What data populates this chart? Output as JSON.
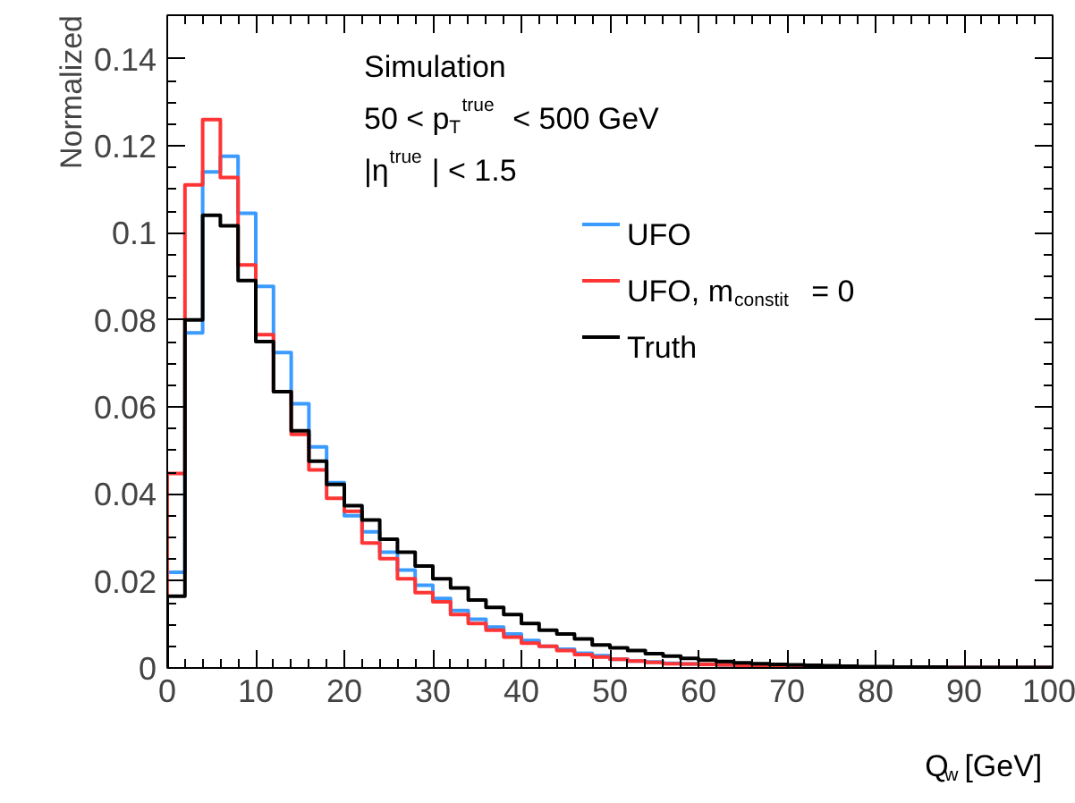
{
  "chart_data": {
    "type": "histogram",
    "xlabel": "Q$_{w}$ [GeV]",
    "ylabel": "Normalized",
    "annotations": [
      "Simulation",
      "50 < p$_{T}$$^{true}$ < 500 GeV",
      "|η$^{true}$| < 1.5"
    ],
    "bins": [
      0,
      2,
      4,
      6,
      8,
      10,
      12,
      14,
      16,
      18,
      20,
      22,
      24,
      26,
      28,
      30,
      32,
      34,
      36,
      38,
      40,
      42,
      44,
      46,
      48,
      50,
      52,
      54,
      56,
      58,
      60,
      62,
      64,
      66,
      68,
      70,
      72,
      74,
      76,
      78,
      80,
      82,
      84,
      86,
      88,
      90,
      92,
      94,
      96,
      98,
      100
    ],
    "series": [
      {
        "name": "UFO",
        "color": "#3b9bff",
        "values": [
          0.022,
          0.077,
          0.114,
          0.1176,
          0.1045,
          0.0877,
          0.0725,
          0.0607,
          0.0508,
          0.0426,
          0.035,
          0.0313,
          0.0266,
          0.0225,
          0.019,
          0.016,
          0.0132,
          0.0112,
          0.0094,
          0.0078,
          0.0063,
          0.005,
          0.0043,
          0.0034,
          0.0028,
          0.002,
          0.0016,
          0.0014,
          0.0011,
          0.0009,
          0.0008,
          0.0007,
          0.0006,
          0.0005,
          0.0004,
          0.0004,
          0.0003,
          0.0003,
          0.0002,
          0.0002,
          0.0002,
          0.0001,
          0.0001,
          0.0001,
          0.0001,
          0.0001,
          0.0001,
          0.0001,
          0.0001,
          0.0001
        ]
      },
      {
        "name": "UFO, m$_{constit}$ = 0",
        "color": "#ff3535",
        "values": [
          0.0447,
          0.111,
          0.126,
          0.1127,
          0.0926,
          0.0766,
          0.0635,
          0.0537,
          0.0455,
          0.039,
          0.036,
          0.0287,
          0.0251,
          0.0205,
          0.0173,
          0.0152,
          0.0123,
          0.0102,
          0.0087,
          0.0071,
          0.0057,
          0.005,
          0.004,
          0.0031,
          0.0025,
          0.002,
          0.0016,
          0.0013,
          0.001,
          0.0009,
          0.0008,
          0.0007,
          0.0006,
          0.0005,
          0.0004,
          0.0003,
          0.0003,
          0.0002,
          0.0002,
          0.0002,
          0.0001,
          0.0001,
          0.0001,
          0.0001,
          0.0001,
          0.0001,
          0.0001,
          0.0001,
          0.0001,
          0.0001
        ]
      },
      {
        "name": "Truth",
        "color": "#000000",
        "values": [
          0.0165,
          0.08,
          0.104,
          0.1016,
          0.089,
          0.075,
          0.0635,
          0.0545,
          0.0475,
          0.0422,
          0.0373,
          0.034,
          0.0296,
          0.0266,
          0.0234,
          0.0205,
          0.0184,
          0.0156,
          0.0139,
          0.0123,
          0.0102,
          0.0087,
          0.0078,
          0.0067,
          0.0053,
          0.0046,
          0.004,
          0.0033,
          0.0027,
          0.0022,
          0.0018,
          0.0015,
          0.0012,
          0.001,
          0.0008,
          0.0007,
          0.0006,
          0.0005,
          0.0004,
          0.0003,
          0.0003,
          0.0002,
          0.0002,
          0.0002,
          0.0001,
          0.0001,
          0.0001,
          0.0001,
          0.0001,
          0.0001
        ]
      }
    ],
    "xlim": [
      0,
      100
    ],
    "ylim": [
      0,
      0.15
    ],
    "xticks": [
      0,
      10,
      20,
      30,
      40,
      50,
      60,
      70,
      80,
      90,
      100
    ],
    "yticks": [
      0,
      0.02,
      0.04,
      0.06,
      0.08,
      0.1,
      0.12,
      0.14
    ],
    "legend": "top right"
  }
}
